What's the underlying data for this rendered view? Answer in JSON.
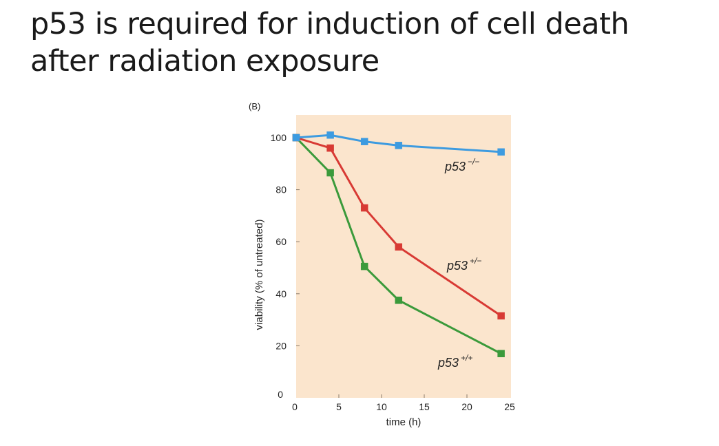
{
  "slide": {
    "title_line1": "p53 is required for induction of cell death",
    "title_line2": "after radiation exposure"
  },
  "chart_data": {
    "type": "line",
    "panel_tag": "(B)",
    "xlabel": "time (h)",
    "ylabel": "viability (% of untreated)",
    "xlim": [
      0,
      25
    ],
    "ylim": [
      0,
      105
    ],
    "xticks": [
      0,
      5,
      10,
      15,
      20,
      25
    ],
    "yticks": [
      0,
      20,
      40,
      60,
      80,
      100
    ],
    "grid": false,
    "legend": "inline labels next to line ends",
    "background_color": "#fbe5cd",
    "series": [
      {
        "name": "p53",
        "genotype": "−/−",
        "color": "#3d9be0",
        "x": [
          0,
          4,
          8,
          12,
          24
        ],
        "y": [
          100,
          101,
          98.5,
          97,
          94.5
        ]
      },
      {
        "name": "p53",
        "genotype": "+/−",
        "color": "#d83a34",
        "x": [
          0,
          4,
          8,
          12,
          24
        ],
        "y": [
          100,
          96,
          73,
          58,
          31.5
        ]
      },
      {
        "name": "p53",
        "genotype": "+/+",
        "color": "#3b9a3b",
        "x": [
          0,
          4,
          8,
          12,
          24
        ],
        "y": [
          100,
          86.5,
          50.5,
          37.5,
          17
        ]
      }
    ]
  }
}
